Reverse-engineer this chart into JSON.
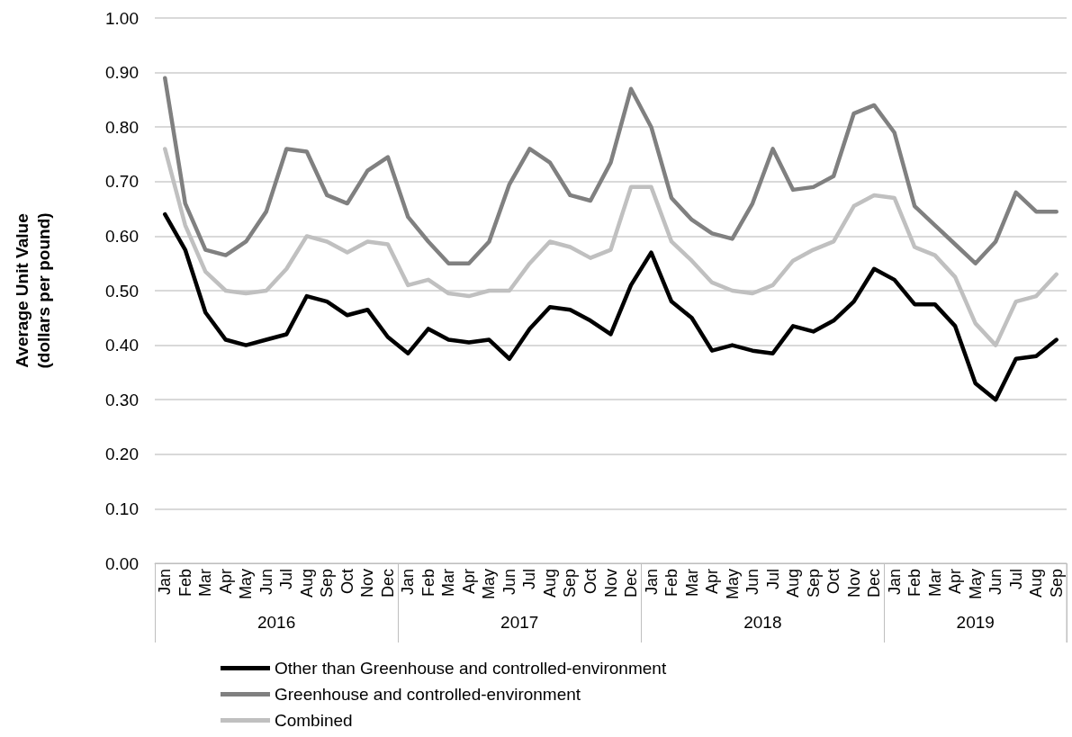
{
  "chart_data": {
    "type": "line",
    "ylabel": "Average Unit Value\n(dollars per pound)",
    "categories": [
      "Jan",
      "Feb",
      "Mar",
      "Apr",
      "May",
      "Jun",
      "Jul",
      "Aug",
      "Sep",
      "Oct",
      "Nov",
      "Dec",
      "Jan",
      "Feb",
      "Mar",
      "Apr",
      "May",
      "Jun",
      "Jul",
      "Aug",
      "Sep",
      "Oct",
      "Nov",
      "Dec",
      "Jan",
      "Feb",
      "Mar",
      "Apr",
      "May",
      "Jun",
      "Jul",
      "Aug",
      "Sep",
      "Oct",
      "Nov",
      "Dec",
      "Jan",
      "Feb",
      "Mar",
      "Apr",
      "May",
      "Jun",
      "Jul",
      "Aug",
      "Sep"
    ],
    "annotations": [
      "2016",
      "2017",
      "2018",
      "2019"
    ],
    "series": [
      {
        "name": "Other than Greenhouse and controlled-environment",
        "color": "#000000",
        "values": [
          0.64,
          0.575,
          0.46,
          0.41,
          0.4,
          0.41,
          0.42,
          0.49,
          0.48,
          0.455,
          0.465,
          0.415,
          0.385,
          0.43,
          0.41,
          0.405,
          0.41,
          0.375,
          0.43,
          0.47,
          0.465,
          0.445,
          0.42,
          0.51,
          0.57,
          0.48,
          0.45,
          0.39,
          0.4,
          0.39,
          0.385,
          0.435,
          0.425,
          0.445,
          0.48,
          0.54,
          0.52,
          0.475,
          0.475,
          0.435,
          0.33,
          0.3,
          0.375,
          0.38,
          0.41
        ]
      },
      {
        "name": "Greenhouse and controlled-environment",
        "color": "#808080",
        "values": [
          0.89,
          0.66,
          0.575,
          0.565,
          0.59,
          0.645,
          0.76,
          0.755,
          0.675,
          0.66,
          0.72,
          0.745,
          0.635,
          0.59,
          0.55,
          0.55,
          0.59,
          0.695,
          0.76,
          0.735,
          0.675,
          0.665,
          0.735,
          0.87,
          0.8,
          0.67,
          0.63,
          0.605,
          0.595,
          0.66,
          0.76,
          0.685,
          0.69,
          0.71,
          0.825,
          0.84,
          0.79,
          0.655,
          0.62,
          0.585,
          0.55,
          0.59,
          0.68,
          0.645,
          0.645
        ]
      },
      {
        "name": "Combined",
        "color": "#c0c0c0",
        "values": [
          0.76,
          0.62,
          0.535,
          0.5,
          0.495,
          0.5,
          0.54,
          0.6,
          0.59,
          0.57,
          0.59,
          0.585,
          0.51,
          0.52,
          0.495,
          0.49,
          0.5,
          0.5,
          0.55,
          0.59,
          0.58,
          0.56,
          0.575,
          0.69,
          0.69,
          0.59,
          0.555,
          0.515,
          0.5,
          0.495,
          0.51,
          0.555,
          0.575,
          0.59,
          0.655,
          0.675,
          0.67,
          0.58,
          0.565,
          0.525,
          0.44,
          0.4,
          0.48,
          0.49,
          0.53
        ]
      }
    ],
    "ylim": [
      0,
      1
    ],
    "yticks": [
      {
        "value": 0,
        "label": "0.00"
      },
      {
        "value": 0.1,
        "label": "0.10"
      },
      {
        "value": 0.2,
        "label": "0.20"
      },
      {
        "value": 0.3,
        "label": "0.30"
      },
      {
        "value": 0.4,
        "label": "0.40"
      },
      {
        "value": 0.5,
        "label": "0.50"
      },
      {
        "value": 0.6,
        "label": "0.60"
      },
      {
        "value": 0.7,
        "label": "0.70"
      },
      {
        "value": 0.8,
        "label": "0.80"
      },
      {
        "value": 0.9,
        "label": "0.90"
      },
      {
        "value": 1,
        "label": "1.00"
      }
    ],
    "grid": "y",
    "legend": "bottom",
    "marker": "none",
    "line_style": "solid"
  }
}
